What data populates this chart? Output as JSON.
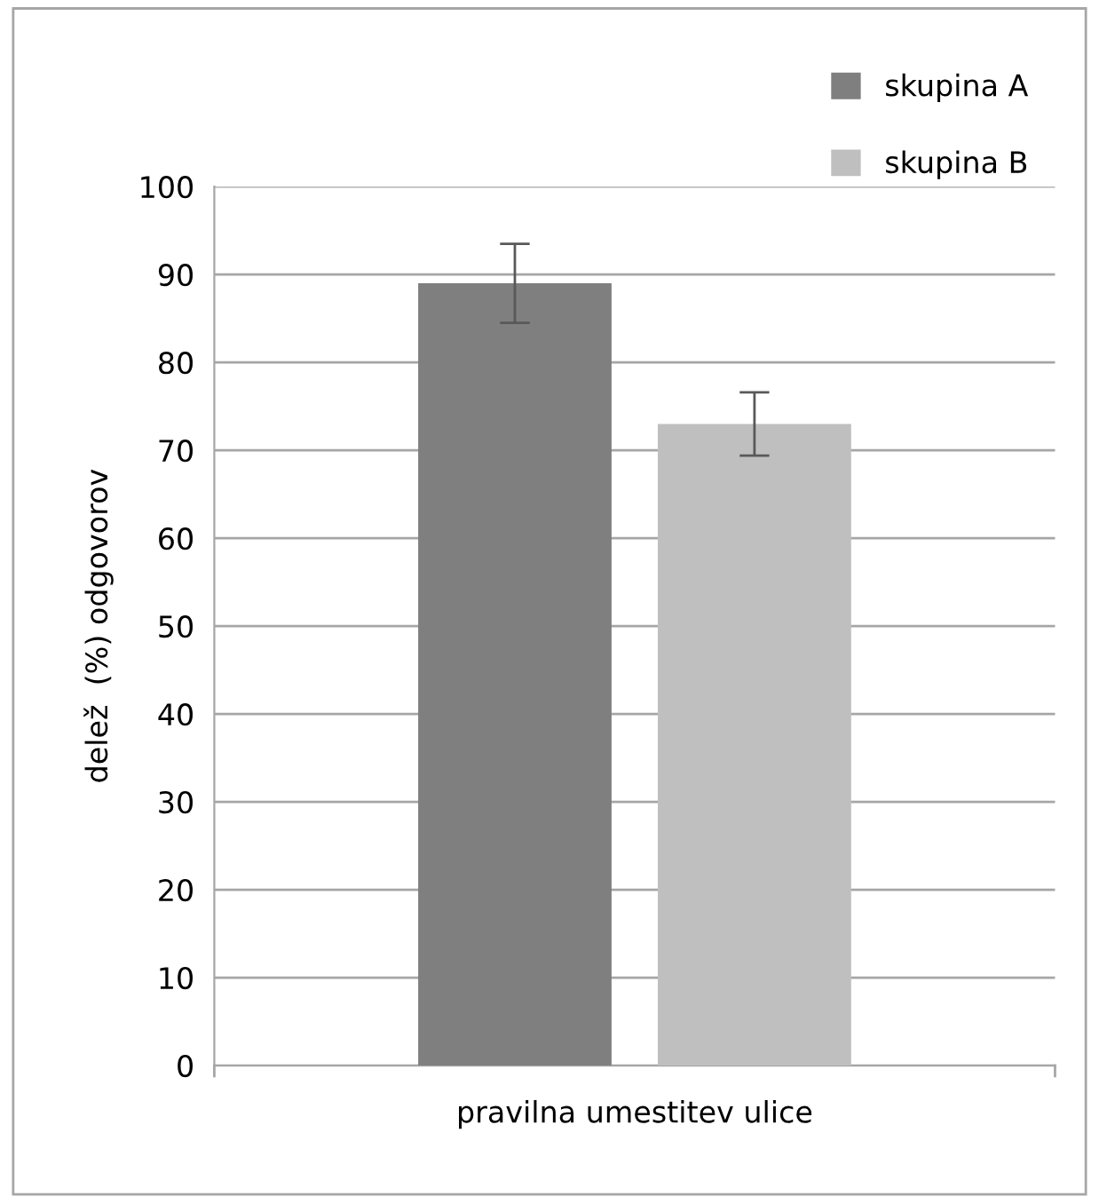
{
  "chart_data": {
    "type": "bar",
    "ylabel": "delež  (%) odgovorov",
    "categories": [
      "pravilna umestitev ulice"
    ],
    "series": [
      {
        "name": "skupina A",
        "color": "#7f7f7f",
        "values": [
          89
        ],
        "errors": [
          4.5
        ]
      },
      {
        "name": "skupina B",
        "color": "#bfbfbf",
        "values": [
          73
        ],
        "errors": [
          3.6
        ]
      }
    ],
    "ylim": [
      0,
      100
    ],
    "yticks": [
      0,
      10,
      20,
      30,
      40,
      50,
      60,
      70,
      80,
      90,
      100
    ],
    "grid": "y",
    "legend": "top right"
  }
}
